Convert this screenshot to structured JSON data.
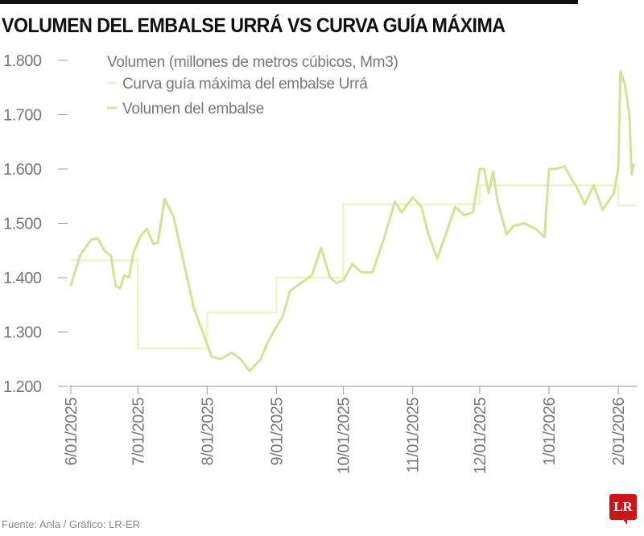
{
  "header": {
    "title": "VOLUMEN DEL EMBALSE URRÁ VS CURVA GUÍA MÁXIMA"
  },
  "footer": {
    "source": "Fuente: Anla / Gráfico: LR-ER",
    "logo": "LR"
  },
  "colors": {
    "volume": "#d3e396",
    "guide": "#eef4c4",
    "axis": "#777777",
    "logo": "#d0131a"
  },
  "chart_data": {
    "type": "line",
    "title": "VOLUMEN DEL EMBALSE URRÁ VS CURVA GUÍA MÁXIMA",
    "ylabel": "Volumen (millones de metros cúbicos, Mm3)",
    "ylim": [
      1200,
      1800
    ],
    "yticks": [
      "1.200",
      "1.300",
      "1.400",
      "1.500",
      "1.600",
      "1.700",
      "1.800"
    ],
    "ytick_values": [
      1200,
      1300,
      1400,
      1500,
      1600,
      1700,
      1800
    ],
    "xticks": [
      "6/01/2025",
      "7/01/2025",
      "8/01/2025",
      "9/01/2025",
      "10/01/2025",
      "11/01/2025",
      "12/01/2025",
      "1/01/2026",
      "2/01/2026"
    ],
    "xtick_dates": [
      "2025-06-01",
      "2025-07-01",
      "2025-08-01",
      "2025-09-01",
      "2025-10-01",
      "2025-11-01",
      "2025-12-01",
      "2026-01-01",
      "2026-02-01"
    ],
    "xlim": [
      "2025-06-01",
      "2026-02-09"
    ],
    "grid": false,
    "legend_placement": "top-left",
    "series": [
      {
        "name": "Curva guía máxima del embalse Urrá",
        "step": true,
        "points": [
          [
            "2025-06-01",
            1432
          ],
          [
            "2025-07-01",
            1270
          ],
          [
            "2025-08-01",
            1336
          ],
          [
            "2025-09-01",
            1400
          ],
          [
            "2025-10-01",
            1535
          ],
          [
            "2025-11-01",
            1535
          ],
          [
            "2025-12-01",
            1570
          ],
          [
            "2026-01-01",
            1570
          ],
          [
            "2026-02-01",
            1533
          ],
          [
            "2026-02-09",
            1533
          ]
        ]
      },
      {
        "name": "Volumen del embalse",
        "points": [
          [
            "2025-06-01",
            1385
          ],
          [
            "2025-06-05",
            1440
          ],
          [
            "2025-06-10",
            1470
          ],
          [
            "2025-06-13",
            1472
          ],
          [
            "2025-06-16",
            1450
          ],
          [
            "2025-06-19",
            1440
          ],
          [
            "2025-06-21",
            1385
          ],
          [
            "2025-06-23",
            1380
          ],
          [
            "2025-06-25",
            1405
          ],
          [
            "2025-06-27",
            1400
          ],
          [
            "2025-06-29",
            1445
          ],
          [
            "2025-07-02",
            1475
          ],
          [
            "2025-07-05",
            1490
          ],
          [
            "2025-07-08",
            1462
          ],
          [
            "2025-07-10",
            1465
          ],
          [
            "2025-07-13",
            1545
          ],
          [
            "2025-07-17",
            1512
          ],
          [
            "2025-07-22",
            1420
          ],
          [
            "2025-07-26",
            1345
          ],
          [
            "2025-07-30",
            1300
          ],
          [
            "2025-08-03",
            1255
          ],
          [
            "2025-08-07",
            1250
          ],
          [
            "2025-08-12",
            1262
          ],
          [
            "2025-08-16",
            1250
          ],
          [
            "2025-08-20",
            1228
          ],
          [
            "2025-08-25",
            1250
          ],
          [
            "2025-08-28",
            1280
          ],
          [
            "2025-09-01",
            1310
          ],
          [
            "2025-09-04",
            1330
          ],
          [
            "2025-09-07",
            1375
          ],
          [
            "2025-09-12",
            1390
          ],
          [
            "2025-09-17",
            1405
          ],
          [
            "2025-09-21",
            1455
          ],
          [
            "2025-09-25",
            1400
          ],
          [
            "2025-09-28",
            1390
          ],
          [
            "2025-10-01",
            1395
          ],
          [
            "2025-10-05",
            1425
          ],
          [
            "2025-10-09",
            1410
          ],
          [
            "2025-10-14",
            1410
          ],
          [
            "2025-10-19",
            1470
          ],
          [
            "2025-10-24",
            1540
          ],
          [
            "2025-10-27",
            1520
          ],
          [
            "2025-11-01",
            1548
          ],
          [
            "2025-11-05",
            1530
          ],
          [
            "2025-11-08",
            1480
          ],
          [
            "2025-11-12",
            1435
          ],
          [
            "2025-11-15",
            1470
          ],
          [
            "2025-11-20",
            1530
          ],
          [
            "2025-11-24",
            1515
          ],
          [
            "2025-11-28",
            1520
          ],
          [
            "2025-12-01",
            1600
          ],
          [
            "2025-12-03",
            1600
          ],
          [
            "2025-12-05",
            1555
          ],
          [
            "2025-12-07",
            1595
          ],
          [
            "2025-12-09",
            1540
          ],
          [
            "2025-12-13",
            1480
          ],
          [
            "2025-12-16",
            1495
          ],
          [
            "2025-12-21",
            1500
          ],
          [
            "2025-12-26",
            1490
          ],
          [
            "2025-12-30",
            1475
          ],
          [
            "2026-01-01",
            1600
          ],
          [
            "2026-01-04",
            1600
          ],
          [
            "2026-01-08",
            1605
          ],
          [
            "2026-01-12",
            1575
          ],
          [
            "2026-01-13",
            1570
          ],
          [
            "2026-01-17",
            1535
          ],
          [
            "2026-01-21",
            1570
          ],
          [
            "2026-01-25",
            1525
          ],
          [
            "2026-01-30",
            1555
          ],
          [
            "2026-02-01",
            1600
          ],
          [
            "2026-02-02",
            1780
          ],
          [
            "2026-02-04",
            1755
          ],
          [
            "2026-02-06",
            1700
          ],
          [
            "2026-02-07",
            1590
          ],
          [
            "2026-02-08",
            1610
          ]
        ]
      }
    ]
  }
}
